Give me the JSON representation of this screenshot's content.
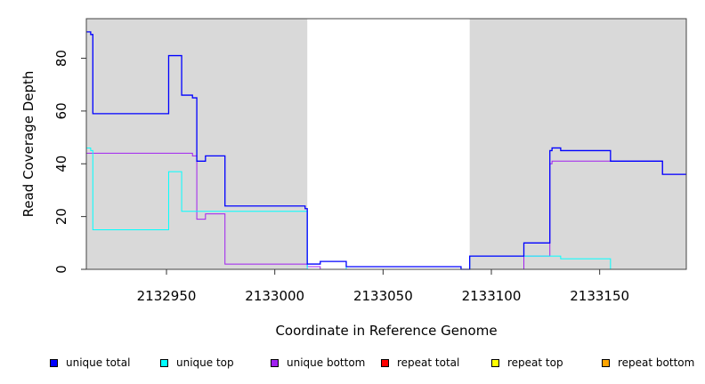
{
  "chart_data": {
    "type": "line",
    "xlabel": "Coordinate in Reference Genome",
    "ylabel": "Read Coverage Depth",
    "xlim": [
      2132913,
      2133190
    ],
    "ylim": [
      0,
      95
    ],
    "xticks": [
      2132950,
      2133000,
      2133050,
      2133100,
      2133150
    ],
    "yticks": [
      0,
      20,
      40,
      60,
      80
    ],
    "shaded_regions": [
      [
        2132913,
        2133015
      ],
      [
        2133090,
        2133190
      ]
    ],
    "shade_color": "#d9d9d9",
    "series": [
      {
        "name": "unique total",
        "color": "#0000ff",
        "steps": [
          [
            2132913,
            90
          ],
          [
            2132915,
            89
          ],
          [
            2132916,
            59
          ],
          [
            2132951,
            81
          ],
          [
            2132957,
            66
          ],
          [
            2132962,
            65
          ],
          [
            2132964,
            41
          ],
          [
            2132968,
            43
          ],
          [
            2132977,
            24
          ],
          [
            2133014,
            23
          ],
          [
            2133015,
            2
          ],
          [
            2133021,
            3
          ],
          [
            2133033,
            1
          ],
          [
            2133086,
            0
          ],
          [
            2133090,
            5
          ],
          [
            2133115,
            10
          ],
          [
            2133127,
            45
          ],
          [
            2133128,
            46
          ],
          [
            2133132,
            45
          ],
          [
            2133155,
            41
          ],
          [
            2133179,
            36
          ],
          [
            2133190,
            36
          ]
        ]
      },
      {
        "name": "unique top",
        "color": "#00ffff",
        "steps": [
          [
            2132913,
            46
          ],
          [
            2132915,
            45
          ],
          [
            2132916,
            15
          ],
          [
            2132951,
            37
          ],
          [
            2132957,
            22
          ],
          [
            2133015,
            0
          ],
          [
            2133033,
            1
          ],
          [
            2133086,
            0
          ],
          [
            2133090,
            5
          ],
          [
            2133132,
            4
          ],
          [
            2133155,
            0
          ],
          [
            2133190,
            0
          ]
        ]
      },
      {
        "name": "unique bottom",
        "color": "#a020f0",
        "steps": [
          [
            2132913,
            44
          ],
          [
            2132962,
            43
          ],
          [
            2132964,
            19
          ],
          [
            2132968,
            21
          ],
          [
            2132977,
            2
          ],
          [
            2133015,
            1
          ],
          [
            2133021,
            0
          ],
          [
            2133115,
            5
          ],
          [
            2133127,
            40
          ],
          [
            2133128,
            41
          ],
          [
            2133155,
            41
          ],
          [
            2133179,
            36
          ],
          [
            2133190,
            36
          ]
        ]
      },
      {
        "name": "repeat total",
        "color": "#ff0000",
        "steps": [
          [
            2132913,
            0
          ],
          [
            2133190,
            0
          ]
        ]
      },
      {
        "name": "repeat top",
        "color": "#ffff00",
        "steps": [
          [
            2132913,
            0
          ],
          [
            2133190,
            0
          ]
        ]
      },
      {
        "name": "repeat bottom",
        "color": "#ffa500",
        "steps": [
          [
            2132913,
            0
          ],
          [
            2133190,
            0
          ]
        ]
      }
    ]
  }
}
